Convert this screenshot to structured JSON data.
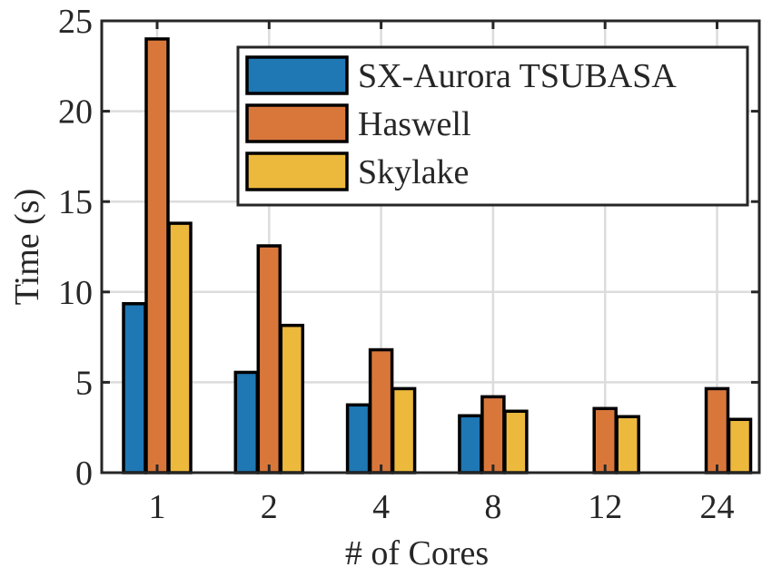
{
  "chart_data": {
    "type": "bar",
    "categories": [
      "1",
      "2",
      "4",
      "8",
      "12",
      "24"
    ],
    "series": [
      {
        "name": "SX-Aurora TSUBASA",
        "color": "#1f77b4",
        "values": [
          9.35,
          5.55,
          3.75,
          3.15,
          0,
          0
        ]
      },
      {
        "name": "Haswell",
        "color": "#d9773b",
        "values": [
          24.0,
          12.55,
          6.8,
          4.2,
          3.55,
          4.65
        ]
      },
      {
        "name": "Skylake",
        "color": "#ecb93c",
        "values": [
          13.8,
          8.15,
          4.65,
          3.4,
          3.1,
          2.95
        ]
      }
    ],
    "title": "",
    "xlabel": "# of Cores",
    "ylabel": "Time (s)",
    "ylim": [
      0,
      25
    ],
    "yticks": [
      "0",
      "5",
      "10",
      "15",
      "20",
      "25"
    ],
    "grid": true,
    "legend_position": "top-right"
  }
}
